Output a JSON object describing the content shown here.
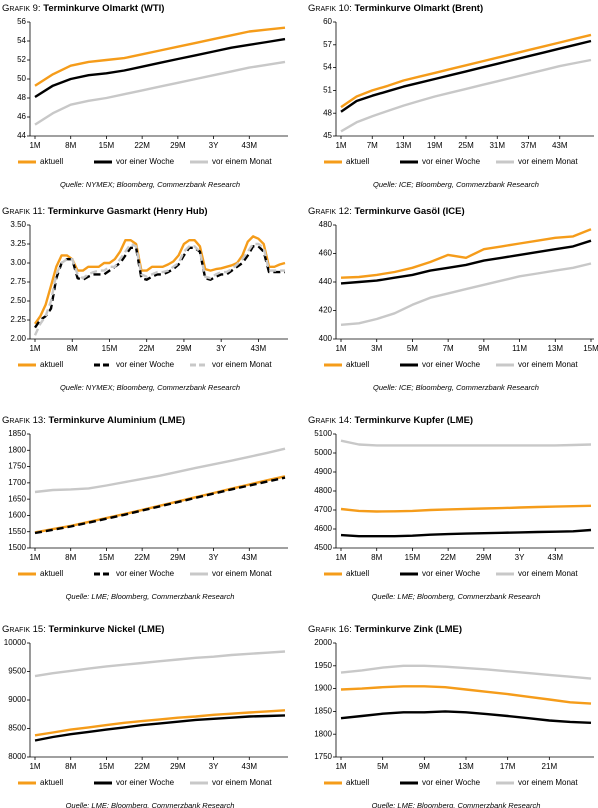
{
  "chart_data": [
    {
      "type": "line",
      "label": "Grafik 9:",
      "title": "Terminkurve Olmarkt (WTI)",
      "categories": [
        "1M",
        null,
        "8M",
        null,
        "15M",
        null,
        "22M",
        null,
        "29M",
        null,
        "3Y",
        null,
        "43M",
        null,
        null
      ],
      "series": [
        {
          "name": "aktuell",
          "color": "#f59c1a",
          "values": [
            49.3,
            50.5,
            51.4,
            51.8,
            52.0,
            52.2,
            52.6,
            53.0,
            53.4,
            53.8,
            54.2,
            54.6,
            55.0,
            55.2,
            55.4
          ]
        },
        {
          "name": "vor einer Woche",
          "color": "#000000",
          "values": [
            48.1,
            49.3,
            50.0,
            50.4,
            50.6,
            50.9,
            51.3,
            51.7,
            52.1,
            52.5,
            52.9,
            53.3,
            53.6,
            53.9,
            54.2
          ]
        },
        {
          "name": "vor einem Monat",
          "color": "#c8c8c8",
          "values": [
            45.2,
            46.4,
            47.3,
            47.7,
            48.0,
            48.4,
            48.8,
            49.2,
            49.6,
            50.0,
            50.4,
            50.8,
            51.2,
            51.5,
            51.8
          ]
        }
      ],
      "ylim": [
        44,
        56
      ],
      "yticks": [
        44,
        46,
        48,
        50,
        52,
        54,
        56
      ],
      "source": "Quelle: NYMEX; Bloomberg, Commerzbank Research"
    },
    {
      "type": "line",
      "label": "Grafik 10:",
      "title": "Terminkurve Olmarkt (Brent)",
      "categories": [
        "1M",
        null,
        "7M",
        null,
        "13M",
        null,
        "19M",
        null,
        "25M",
        null,
        "31M",
        null,
        "37M",
        null,
        "43M",
        null,
        null
      ],
      "series": [
        {
          "name": "aktuell",
          "color": "#f59c1a",
          "values": [
            48.8,
            50.2,
            51.0,
            51.6,
            52.3,
            52.8,
            53.3,
            53.8,
            54.3,
            54.8,
            55.3,
            55.8,
            56.3,
            56.8,
            57.3,
            57.8,
            58.3
          ]
        },
        {
          "name": "vor einer Woche",
          "color": "#000000",
          "values": [
            48.2,
            49.6,
            50.3,
            50.9,
            51.5,
            52.0,
            52.5,
            53.0,
            53.5,
            54.0,
            54.5,
            55.0,
            55.5,
            56.0,
            56.5,
            57.0,
            57.5
          ]
        },
        {
          "name": "vor einem Monat",
          "color": "#c8c8c8",
          "values": [
            45.6,
            46.8,
            47.6,
            48.3,
            49.0,
            49.6,
            50.2,
            50.7,
            51.2,
            51.7,
            52.2,
            52.7,
            53.2,
            53.7,
            54.2,
            54.6,
            55.0
          ]
        }
      ],
      "ylim": [
        45,
        60
      ],
      "yticks": [
        45,
        48,
        51,
        54,
        57,
        60
      ],
      "source": "Quelle: ICE; Bloomberg, Commerzbank Research"
    },
    {
      "type": "line",
      "label": "Grafik 11:",
      "title": "Terminkurve Gasmarkt (Henry Hub)",
      "categories": [
        "1M",
        null,
        null,
        null,
        null,
        null,
        null,
        "8M",
        null,
        null,
        null,
        null,
        null,
        null,
        "15M",
        null,
        null,
        null,
        null,
        null,
        null,
        "22M",
        null,
        null,
        null,
        null,
        null,
        null,
        "29M",
        null,
        null,
        null,
        null,
        null,
        null,
        "3Y",
        null,
        null,
        null,
        null,
        null,
        null,
        "43M",
        null,
        null,
        null,
        null,
        null
      ],
      "series": [
        {
          "name": "aktuell",
          "color": "#f59c1a",
          "values": [
            2.2,
            2.3,
            2.45,
            2.7,
            2.95,
            3.1,
            3.1,
            3.05,
            2.9,
            2.9,
            2.95,
            2.95,
            2.95,
            3.0,
            3.0,
            3.05,
            3.15,
            3.3,
            3.3,
            3.25,
            2.9,
            2.9,
            2.95,
            2.95,
            2.95,
            2.98,
            3.02,
            3.1,
            3.25,
            3.3,
            3.3,
            3.22,
            2.92,
            2.9,
            2.92,
            2.93,
            2.95,
            2.97,
            3.0,
            3.1,
            3.28,
            3.35,
            3.32,
            3.25,
            2.95,
            2.95,
            2.98,
            3.0
          ]
        },
        {
          "name": "vor einer Woche",
          "color": "#000000",
          "dashed": true,
          "values": [
            2.15,
            2.25,
            2.3,
            2.4,
            2.8,
            3.0,
            3.05,
            3.05,
            2.8,
            2.78,
            2.82,
            2.85,
            2.85,
            2.85,
            2.9,
            2.95,
            3.0,
            3.1,
            3.2,
            3.2,
            2.8,
            2.78,
            2.82,
            2.85,
            2.85,
            2.88,
            2.92,
            2.98,
            3.1,
            3.2,
            3.2,
            3.15,
            2.8,
            2.78,
            2.82,
            2.85,
            2.85,
            2.9,
            2.95,
            3.0,
            3.1,
            3.22,
            3.22,
            3.15,
            2.88,
            2.88,
            2.88,
            2.88
          ]
        },
        {
          "name": "vor einem Monat",
          "color": "#c8c8c8",
          "dashed": true,
          "values": [
            2.05,
            2.2,
            2.3,
            2.5,
            2.85,
            3.0,
            3.05,
            3.05,
            2.85,
            2.8,
            2.85,
            2.88,
            2.9,
            2.9,
            2.95,
            2.95,
            3.05,
            3.15,
            3.25,
            3.22,
            2.85,
            2.82,
            2.85,
            2.88,
            2.88,
            2.9,
            2.95,
            3.0,
            3.15,
            3.22,
            3.22,
            3.15,
            2.82,
            2.8,
            2.85,
            2.88,
            2.88,
            2.92,
            2.98,
            3.05,
            3.15,
            3.25,
            3.25,
            3.2,
            2.9,
            2.9,
            2.9,
            2.9
          ]
        }
      ],
      "ylim": [
        2,
        3.5
      ],
      "yticks": [
        {
          "value": 2,
          "label": "2.00"
        },
        2.25,
        {
          "value": 2.5,
          "label": "2.50"
        },
        2.75,
        {
          "value": 3,
          "label": "3.00"
        },
        3.25,
        {
          "value": 3.5,
          "label": "3.50"
        }
      ],
      "source": "Quelle: NYMEX; Bloomberg, Commerzbank Research"
    },
    {
      "type": "line",
      "label": "Grafik 12:",
      "title": "Terminkurve Gasöl (ICE)",
      "categories": [
        "1M",
        null,
        "3M",
        null,
        "5M",
        null,
        "7M",
        null,
        "9M",
        null,
        "11M",
        null,
        "13M",
        null,
        "15M"
      ],
      "series": [
        {
          "name": "aktuell",
          "color": "#f59c1a",
          "values": [
            443,
            443.5,
            445,
            447,
            450,
            454,
            459,
            457,
            463,
            465,
            467,
            469,
            471,
            472,
            477
          ]
        },
        {
          "name": "vor einer Woche",
          "color": "#000000",
          "values": [
            439,
            440,
            441,
            443,
            445,
            448,
            450,
            452,
            455,
            457,
            459,
            461,
            463,
            465,
            469
          ]
        },
        {
          "name": "vor einem Monat",
          "color": "#c8c8c8",
          "values": [
            410,
            411,
            414,
            418,
            424,
            429,
            432,
            435,
            438,
            441,
            444,
            446,
            448,
            450,
            453
          ]
        }
      ],
      "ylim": [
        400,
        480
      ],
      "yticks": [
        400,
        420,
        440,
        460,
        480
      ],
      "source": "Quelle: ICE; Bloomberg, Commerzbank Research"
    },
    {
      "type": "line",
      "label": "Grafik 13:",
      "title": "Terminkurve Aluminium (LME)",
      "categories": [
        "1M",
        null,
        "8M",
        null,
        "15M",
        null,
        "22M",
        null,
        "29M",
        null,
        "3Y",
        null,
        "43M",
        null,
        null
      ],
      "series": [
        {
          "name": "aktuell",
          "color": "#f59c1a",
          "values": [
            1548,
            1558,
            1568,
            1580,
            1592,
            1604,
            1617,
            1630,
            1643,
            1656,
            1669,
            1682,
            1695,
            1708,
            1720
          ]
        },
        {
          "name": "vor einer Woche",
          "color": "#000000",
          "dashed": true,
          "values": [
            1546,
            1556,
            1566,
            1578,
            1590,
            1602,
            1615,
            1628,
            1641,
            1654,
            1667,
            1680,
            1692,
            1704,
            1716
          ]
        },
        {
          "name": "vor einem Monat",
          "color": "#c8c8c8",
          "values": [
            1672,
            1678,
            1680,
            1683,
            1692,
            1702,
            1712,
            1722,
            1734,
            1746,
            1757,
            1768,
            1780,
            1792,
            1805
          ]
        }
      ],
      "ylim": [
        1500,
        1850
      ],
      "yticks": [
        1500,
        1550,
        1600,
        1650,
        1700,
        1750,
        1800,
        1850
      ],
      "source": "Quelle: LME; Bloomberg, Commerzbank Research"
    },
    {
      "type": "line",
      "label": "Grafik 14:",
      "title": "Terminkurve Kupfer (LME)",
      "categories": [
        "1M",
        null,
        "8M",
        null,
        "15M",
        null,
        "22M",
        null,
        "29M",
        null,
        "3Y",
        null,
        "43M",
        null,
        null
      ],
      "series": [
        {
          "name": "aktuell",
          "color": "#f59c1a",
          "values": [
            4705,
            4695,
            4692,
            4693,
            4695,
            4700,
            4703,
            4706,
            4708,
            4710,
            4713,
            4716,
            4718,
            4720,
            4722
          ]
        },
        {
          "name": "vor einer Woche",
          "color": "#000000",
          "values": [
            4568,
            4562,
            4562,
            4562,
            4565,
            4570,
            4573,
            4576,
            4578,
            4580,
            4582,
            4584,
            4586,
            4588,
            4595
          ]
        },
        {
          "name": "vor einem Monat",
          "color": "#c8c8c8",
          "values": [
            5065,
            5045,
            5040,
            5040,
            5040,
            5040,
            5040,
            5040,
            5040,
            5040,
            5040,
            5040,
            5040,
            5042,
            5045
          ]
        }
      ],
      "ylim": [
        4500,
        5100
      ],
      "yticks": [
        4500,
        4600,
        4700,
        4800,
        4900,
        5000,
        5100
      ],
      "source": "Quelle: LME; Bloomberg, Commerzbank Research"
    },
    {
      "type": "line",
      "label": "Grafik 15:",
      "title": "Terminkurve Nickel (LME)",
      "categories": [
        "1M",
        null,
        "8M",
        null,
        "15M",
        null,
        "22M",
        null,
        "29M",
        null,
        "3Y",
        null,
        "43M",
        null,
        null
      ],
      "series": [
        {
          "name": "aktuell",
          "color": "#f59c1a",
          "values": [
            8380,
            8430,
            8480,
            8520,
            8560,
            8600,
            8630,
            8660,
            8690,
            8710,
            8740,
            8760,
            8780,
            8800,
            8820
          ]
        },
        {
          "name": "vor einer Woche",
          "color": "#000000",
          "values": [
            8290,
            8350,
            8400,
            8440,
            8480,
            8520,
            8560,
            8590,
            8620,
            8650,
            8670,
            8690,
            8710,
            8720,
            8730
          ]
        },
        {
          "name": "vor einem Monat",
          "color": "#c8c8c8",
          "values": [
            9420,
            9470,
            9510,
            9550,
            9590,
            9620,
            9650,
            9680,
            9710,
            9740,
            9760,
            9790,
            9810,
            9830,
            9850
          ]
        }
      ],
      "ylim": [
        8000,
        10000
      ],
      "yticks": [
        8000,
        8500,
        9000,
        9500,
        10000
      ],
      "source": "Quelle: LME; Bloomberg, Commerzbank Research"
    },
    {
      "type": "line",
      "label": "Grafik 16:",
      "title": "Terminkurve Zink (LME)",
      "categories": [
        "1M",
        null,
        "5M",
        null,
        "9M",
        null,
        "13M",
        null,
        "17M",
        null,
        "21M",
        null,
        null
      ],
      "series": [
        {
          "name": "aktuell",
          "color": "#f59c1a",
          "values": [
            1898,
            1900,
            1903,
            1905,
            1905,
            1903,
            1898,
            1893,
            1888,
            1882,
            1876,
            1870,
            1867
          ]
        },
        {
          "name": "vor einer Woche",
          "color": "#000000",
          "values": [
            1835,
            1840,
            1845,
            1848,
            1848,
            1850,
            1848,
            1844,
            1840,
            1835,
            1830,
            1827,
            1825
          ]
        },
        {
          "name": "vor einem Monat",
          "color": "#c8c8c8",
          "values": [
            1935,
            1940,
            1946,
            1950,
            1950,
            1948,
            1945,
            1942,
            1938,
            1934,
            1930,
            1926,
            1922
          ]
        }
      ],
      "ylim": [
        1750,
        2000
      ],
      "yticks": [
        1750,
        1800,
        1850,
        1900,
        1950,
        2000
      ],
      "source": "Quelle: LME; Bloomberg, Commerzbank Research"
    }
  ]
}
